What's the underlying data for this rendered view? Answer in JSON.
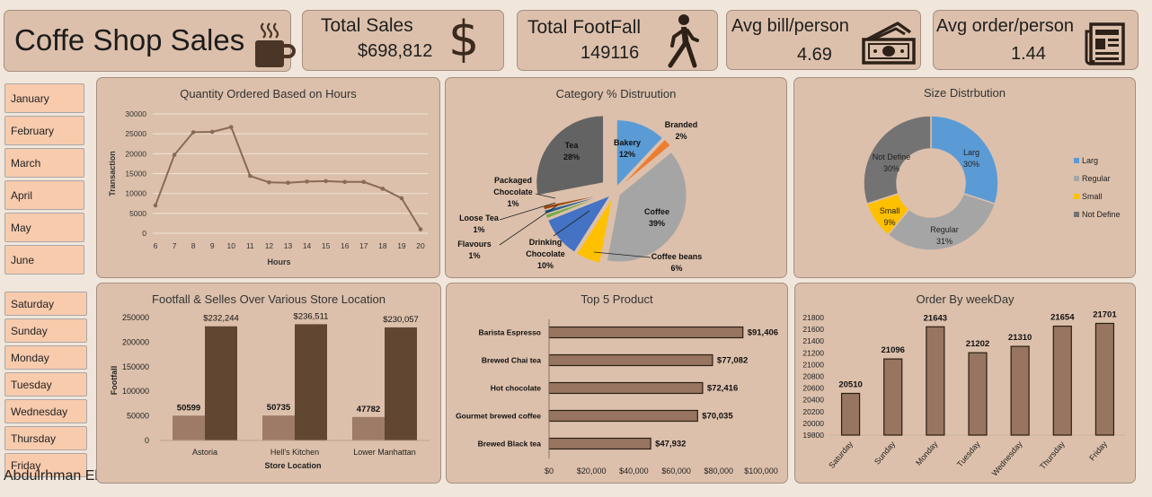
{
  "header": {
    "title": "Coffe Shop Sales"
  },
  "kpis": {
    "total_sales": {
      "label": "Total Sales",
      "value": "$698,812",
      "icon": "dollar-icon"
    },
    "total_footfall": {
      "label": "Total FootFall",
      "value": "149116",
      "icon": "walking-person-icon"
    },
    "avg_bill": {
      "label": "Avg bill/person",
      "value": "4.69",
      "icon": "cash-icon"
    },
    "avg_order": {
      "label": "Avg order/person",
      "value": "1.44",
      "icon": "newspaper-icon"
    }
  },
  "slicers": {
    "months": [
      "January",
      "February",
      "March",
      "April",
      "May",
      "June"
    ],
    "weekdays": [
      "Saturday",
      "Sunday",
      "Monday",
      "Tuesday",
      "Wednesday",
      "Thursday",
      "Friday"
    ]
  },
  "author": "Abdulrhman ElZeiny",
  "colors": {
    "card": "#dcc0ab",
    "slicer": "#f8cbad",
    "line": "#8a6a56",
    "bar_dark": "#614631",
    "bar_light": "#9e7b66",
    "bar_mid": "#977561"
  },
  "chart_data": [
    {
      "id": "hours",
      "type": "line",
      "title": "Quantity Ordered Based on Hours",
      "xlabel": "Hours",
      "ylabel": "Transaction",
      "x": [
        6,
        7,
        8,
        9,
        10,
        11,
        12,
        13,
        14,
        15,
        16,
        17,
        18,
        19,
        20
      ],
      "y": [
        7000,
        19700,
        25400,
        25500,
        26700,
        14400,
        12800,
        12700,
        13000,
        13100,
        12900,
        12900,
        11200,
        8800,
        1000
      ],
      "yticks": [
        "0",
        "5000",
        "10000",
        "15000",
        "20000",
        "25000",
        "30000"
      ],
      "ylim": [
        0,
        30000
      ],
      "grid": true
    },
    {
      "id": "category",
      "type": "pie",
      "title": "Category % Distruution",
      "slices": [
        {
          "label": "Bakery",
          "pct": 12,
          "text": "12%",
          "color": "#5b9bd5"
        },
        {
          "label": "Branded",
          "pct": 2,
          "text": "2%",
          "color": "#ed7d31"
        },
        {
          "label": "Coffee",
          "pct": 39,
          "text": "39%",
          "color": "#a5a5a5"
        },
        {
          "label": "Coffee beans",
          "pct": 6,
          "text": "6%",
          "color": "#ffc000"
        },
        {
          "label": "Drinking Chocolate",
          "pct": 10,
          "text": "10%",
          "color": "#4472c4"
        },
        {
          "label": "Flavours",
          "pct": 1,
          "text": "1%",
          "color": "#70ad47"
        },
        {
          "label": "Loose Tea",
          "pct": 1,
          "text": "1%",
          "color": "#255e91"
        },
        {
          "label": "Packaged Chocolate",
          "pct": 1,
          "text": "1%",
          "color": "#9e480e"
        },
        {
          "label": "Tea",
          "pct": 28,
          "text": "28%",
          "color": "#636363"
        }
      ]
    },
    {
      "id": "size",
      "type": "pie",
      "title": "Size Distrbution",
      "slices": [
        {
          "label": "Larg",
          "pct": 30,
          "text": "30%",
          "color": "#5b9bd5"
        },
        {
          "label": "Regular",
          "pct": 31,
          "text": "31%",
          "color": "#a5a5a5"
        },
        {
          "label": "Small",
          "pct": 9,
          "text": "9%",
          "color": "#ffc000"
        },
        {
          "label": "Not Define",
          "pct": 30,
          "text": "30%",
          "color": "#737373"
        }
      ],
      "legend": "right"
    },
    {
      "id": "location",
      "type": "bar",
      "title": "Footfall & Selles Over Various Store Location",
      "categories": [
        "Astoria",
        "Hell's Kitchen",
        "Lower Manhattan"
      ],
      "series": [
        {
          "values": [
            50599,
            50735,
            47782
          ],
          "labels": [
            "50599",
            "50735",
            "47782"
          ]
        },
        {
          "values": [
            232244,
            236511,
            230057
          ],
          "labels": [
            "$232,244",
            "$236,511",
            "$230,057"
          ]
        }
      ],
      "xlabel": "Store Location",
      "ylabel": "Footfall",
      "yticks": [
        "0",
        "50000",
        "100000",
        "150000",
        "200000",
        "250000"
      ],
      "ylim": [
        0,
        250000
      ]
    },
    {
      "id": "products",
      "type": "bar",
      "orientation": "horizontal",
      "title": "Top 5 Product",
      "categories": [
        "Barista Espresso",
        "Brewed Chai tea",
        "Hot chocolate",
        "Gourmet brewed coffee",
        "Brewed Black tea"
      ],
      "values": [
        91406,
        77082,
        72416,
        70035,
        47932
      ],
      "labels": [
        "$91,406",
        "$77,082",
        "$72,416",
        "$70,035",
        "$47,932"
      ],
      "xticks": [
        "$0",
        "$20,000",
        "$40,000",
        "$60,000",
        "$80,000",
        "$100,000"
      ],
      "xlim": [
        0,
        100000
      ]
    },
    {
      "id": "weekday",
      "type": "bar",
      "title": "Order By weekDay",
      "categories": [
        "Saturday",
        "Sunday",
        "Monday",
        "Tuesday",
        "Wednesday",
        "Thursday",
        "Friday"
      ],
      "values": [
        20510,
        21096,
        21643,
        21202,
        21310,
        21654,
        21701
      ],
      "labels": [
        "20510",
        "21096",
        "21643",
        "21202",
        "21310",
        "21654",
        "21701"
      ],
      "yticks": [
        "19800",
        "20000",
        "20200",
        "20400",
        "20600",
        "20800",
        "21000",
        "21200",
        "21400",
        "21600",
        "21800"
      ],
      "ylim": [
        19800,
        21800
      ]
    }
  ]
}
